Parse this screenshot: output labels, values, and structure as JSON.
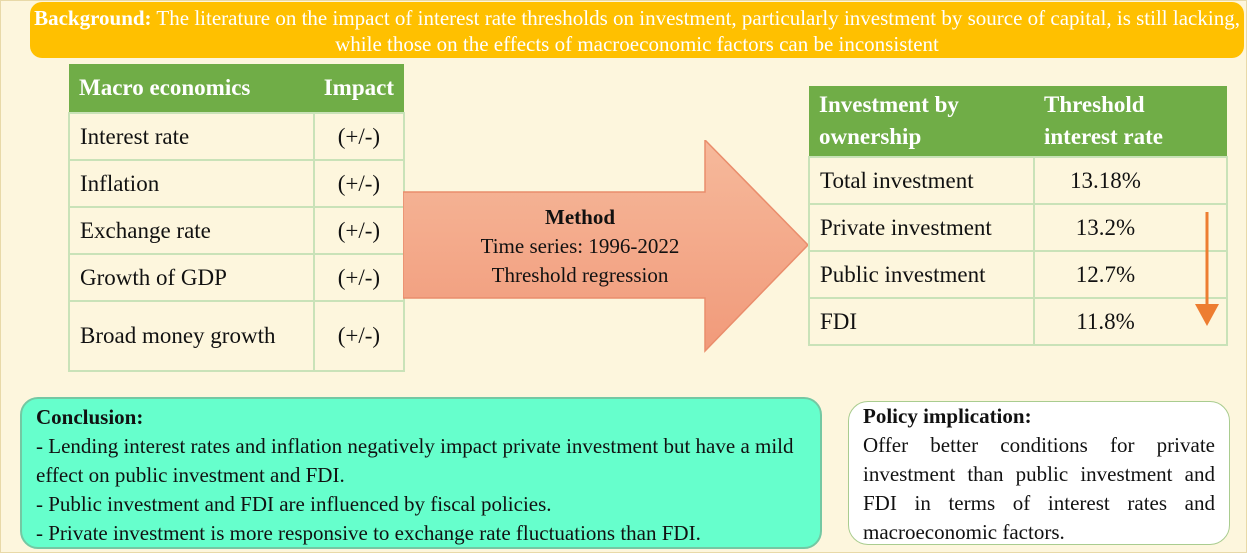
{
  "background": {
    "label": "Background:",
    "text": " The literature on the impact of interest rate thresholds on investment, particularly investment by source of capital, is still lacking, while those on the effects of macroeconomic factors can be inconsistent"
  },
  "macro_table": {
    "headers": [
      "Macro economics",
      "Impact"
    ],
    "rows": [
      {
        "factor": "Interest rate",
        "impact": "(+/-)"
      },
      {
        "factor": "Inflation",
        "impact": "(+/-)"
      },
      {
        "factor": "Exchange rate",
        "impact": "(+/-)"
      },
      {
        "factor": "Growth of GDP",
        "impact": "(+/-)"
      },
      {
        "factor": "Broad money growth",
        "impact": "(+/-)"
      }
    ]
  },
  "method": {
    "title": "Method",
    "lines": [
      "Time series: 1996-2022",
      "Threshold regression"
    ]
  },
  "threshold_table": {
    "headers": [
      "Investment by ownership",
      "Threshold interest rate"
    ],
    "rows": [
      {
        "type": "Total investment",
        "rate": "13.18%"
      },
      {
        "type": "Private investment",
        "rate": "13.2%"
      },
      {
        "type": "Public investment",
        "rate": "12.7%"
      },
      {
        "type": "FDI",
        "rate": "11.8%"
      }
    ]
  },
  "conclusion": {
    "title": "Conclusion:",
    "points": [
      "- Lending interest rates and inflation negatively impact private investment but have a mild effect on public investment and FDI.",
      "- Public investment and FDI are influenced by fiscal policies.",
      "- Private investment is more responsive to exchange rate fluctuations than FDI."
    ]
  },
  "policy": {
    "title": "Policy implication:",
    "text": "Offer better conditions for private investment than public investment and FDI in terms of interest rates and macroeconomic factors."
  },
  "colors": {
    "banner": "#ffc000",
    "table_header": "#70ad47",
    "arrow": "#f4a582",
    "down_arrow": "#ed7d31",
    "conclusion_bg": "#66ffcc"
  }
}
